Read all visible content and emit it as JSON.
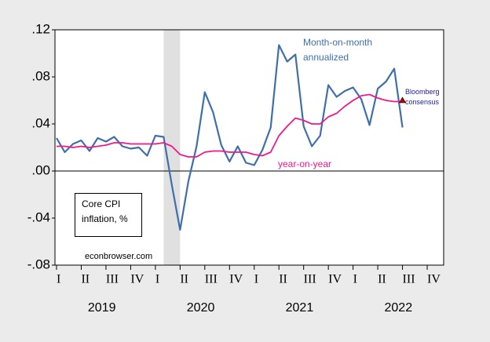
{
  "chart_data": {
    "type": "line",
    "x": [
      "2019-01",
      "2019-02",
      "2019-03",
      "2019-04",
      "2019-05",
      "2019-06",
      "2019-07",
      "2019-08",
      "2019-09",
      "2019-10",
      "2019-11",
      "2019-12",
      "2020-01",
      "2020-02",
      "2020-03",
      "2020-04",
      "2020-05",
      "2020-06",
      "2020-07",
      "2020-08",
      "2020-09",
      "2020-10",
      "2020-11",
      "2020-12",
      "2021-01",
      "2021-02",
      "2021-03",
      "2021-04",
      "2021-05",
      "2021-06",
      "2021-07",
      "2021-08",
      "2021-09",
      "2021-10",
      "2021-11",
      "2021-12",
      "2022-01",
      "2022-02",
      "2022-03",
      "2022-04",
      "2022-05",
      "2022-06",
      "2022-07"
    ],
    "series": [
      {
        "name": "Month-on-month annualized",
        "color": "#3f6fa8",
        "values": [
          0.028,
          0.016,
          0.023,
          0.026,
          0.017,
          0.028,
          0.025,
          0.029,
          0.021,
          0.019,
          0.02,
          0.013,
          0.03,
          0.029,
          -0.012,
          -0.05,
          -0.009,
          0.021,
          0.067,
          0.05,
          0.022,
          0.008,
          0.021,
          0.007,
          0.005,
          0.018,
          0.037,
          0.107,
          0.093,
          0.099,
          0.038,
          0.021,
          0.03,
          0.073,
          0.063,
          0.068,
          0.071,
          0.061,
          0.039,
          0.07,
          0.076,
          0.087,
          0.037
        ]
      },
      {
        "name": "year-on-year",
        "color": "#f0188c",
        "values": [
          0.021,
          0.021,
          0.02,
          0.021,
          0.02,
          0.021,
          0.022,
          0.024,
          0.024,
          0.023,
          0.023,
          0.023,
          0.023,
          0.024,
          0.021,
          0.014,
          0.012,
          0.012,
          0.016,
          0.017,
          0.017,
          0.016,
          0.016,
          0.016,
          0.014,
          0.013,
          0.016,
          0.03,
          0.038,
          0.045,
          0.043,
          0.04,
          0.04,
          0.046,
          0.049,
          0.055,
          0.06,
          0.064,
          0.065,
          0.062,
          0.06,
          0.059,
          0.059
        ]
      }
    ],
    "consensus": {
      "label": "Bloomberg consensus",
      "x": "2022-07",
      "value": 0.06,
      "color": "#c00000"
    },
    "shading": [
      "2020-02",
      "2020-04"
    ],
    "annotations": [
      "Core CPI inflation, %",
      "econbrowser.com"
    ],
    "xlim": [
      "2019-01",
      "2022-12"
    ],
    "xticks": [
      {
        "value": "2019-01",
        "label": "I"
      },
      {
        "value": "2019-04",
        "label": "II"
      },
      {
        "value": "2019-07",
        "label": "III"
      },
      {
        "value": "2019-10",
        "label": "IV"
      },
      {
        "value": "2020-01",
        "label": "I"
      },
      {
        "value": "2020-04",
        "label": "II"
      },
      {
        "value": "2020-07",
        "label": "III"
      },
      {
        "value": "2020-10",
        "label": "IV"
      },
      {
        "value": "2021-01",
        "label": "I"
      },
      {
        "value": "2021-04",
        "label": "II"
      },
      {
        "value": "2021-07",
        "label": "III"
      },
      {
        "value": "2021-10",
        "label": "IV"
      },
      {
        "value": "2022-01",
        "label": "I"
      },
      {
        "value": "2022-04",
        "label": "II"
      },
      {
        "value": "2022-07",
        "label": "III"
      },
      {
        "value": "2022-10",
        "label": "IV"
      }
    ],
    "years": [
      "2019",
      "2020",
      "2021",
      "2022"
    ],
    "ylim": [
      -0.08,
      0.12
    ],
    "yticks": [
      {
        "value": 0.12,
        "label": ".12"
      },
      {
        "value": 0.08,
        "label": ".08"
      },
      {
        "value": 0.04,
        "label": ".04"
      },
      {
        "value": 0,
        "label": ".00"
      },
      {
        "value": -0.04,
        "label": "-.04"
      },
      {
        "value": -0.08,
        "label": "-.08"
      }
    ]
  }
}
